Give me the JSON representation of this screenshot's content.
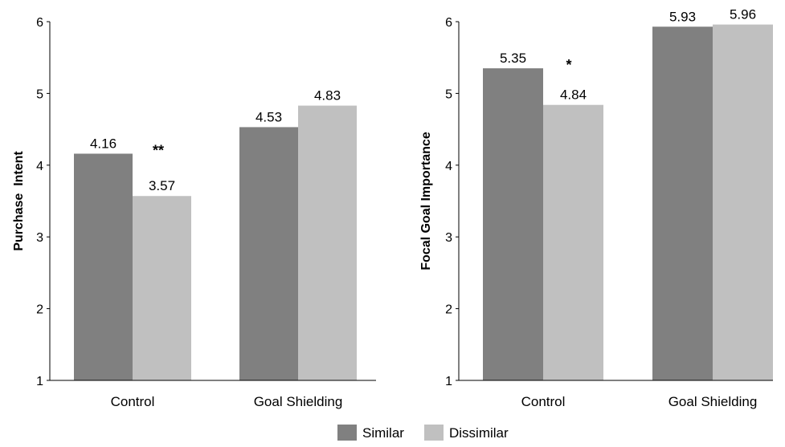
{
  "chart_data": [
    {
      "type": "bar",
      "categories": [
        "Control",
        "Goal Shielding"
      ],
      "series": [
        {
          "name": "Similar",
          "values": [
            4.16,
            4.53
          ]
        },
        {
          "name": "Dissimilar",
          "values": [
            3.57,
            4.83
          ]
        }
      ],
      "ylabel": "Purchase  Intent",
      "ylim": [
        1,
        6
      ],
      "yticks": [
        "1",
        "2",
        "3",
        "4",
        "5",
        "6"
      ],
      "significance": [
        {
          "category": "Control",
          "mark": "**"
        }
      ]
    },
    {
      "type": "bar",
      "categories": [
        "Control",
        "Goal Shielding"
      ],
      "series": [
        {
          "name": "Similar",
          "values": [
            5.35,
            5.93
          ]
        },
        {
          "name": "Dissimilar",
          "values": [
            4.84,
            5.96
          ]
        }
      ],
      "ylabel": "Focal Goal Importance",
      "ylim": [
        1,
        6
      ],
      "yticks": [
        "1",
        "2",
        "3",
        "4",
        "5",
        "6"
      ],
      "significance": [
        {
          "category": "Control",
          "mark": "*"
        }
      ]
    }
  ],
  "legend": {
    "placement": "bottom-center",
    "items": [
      "Similar",
      "Dissimilar"
    ]
  },
  "colors": {
    "similar": "#808080",
    "dissimilar": "#c0c0c0",
    "axis": "#000000"
  }
}
